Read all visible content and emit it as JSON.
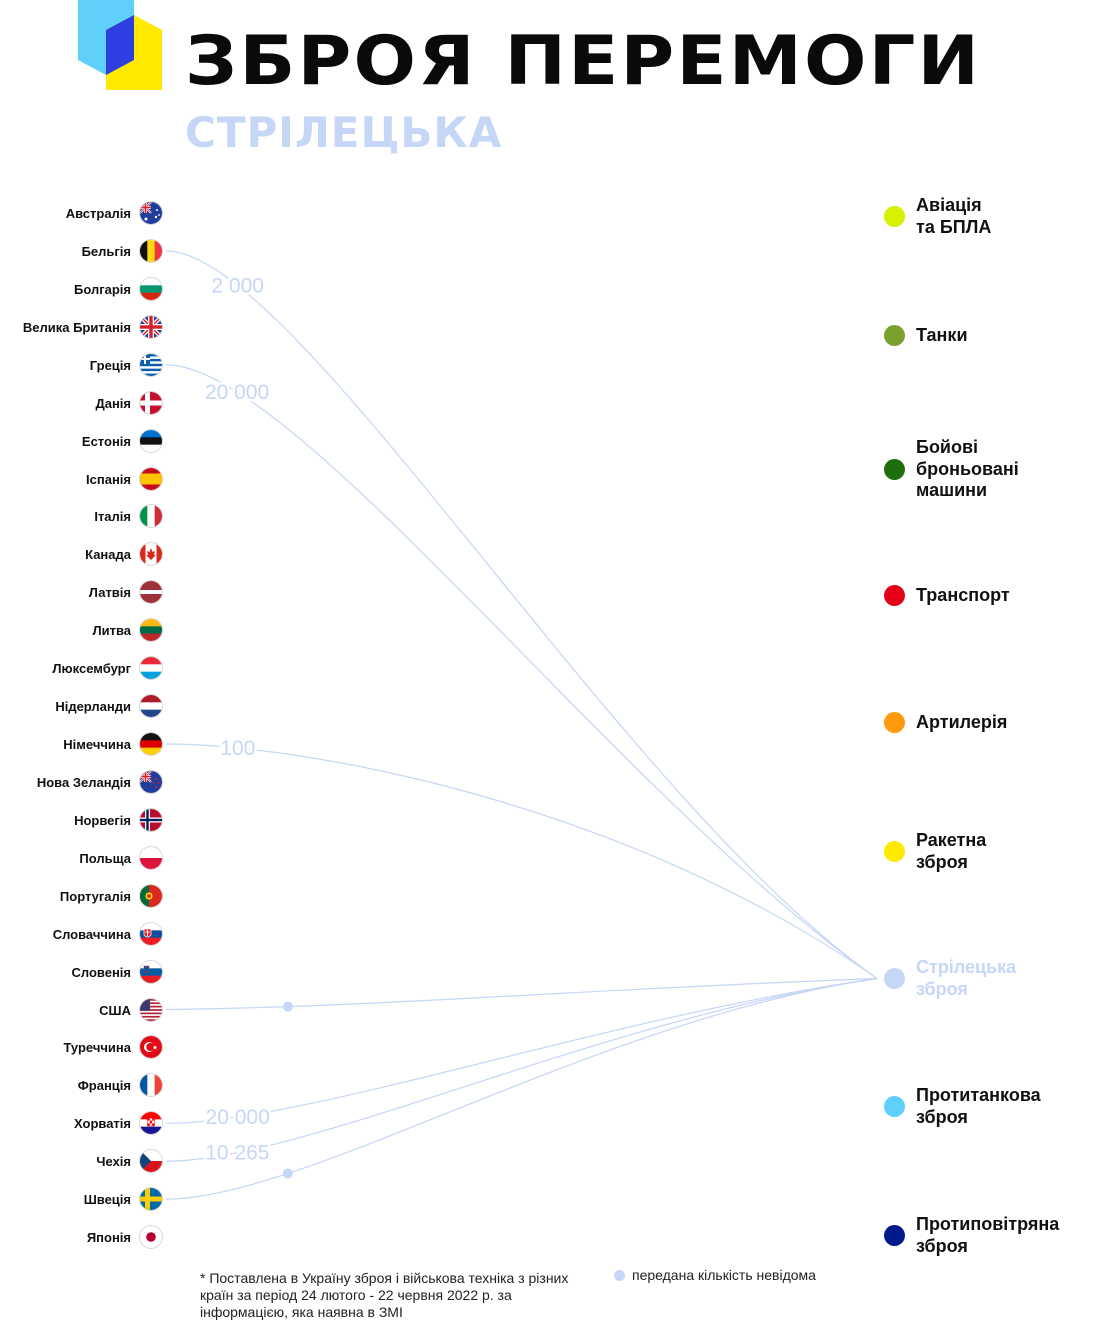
{
  "header": {
    "title": "ЗБРОЯ ПЕРЕМОГИ",
    "subtitle": "СТРІЛЕЦЬКА"
  },
  "colors": {
    "link": "#c5d6f6",
    "logo_blue": "#5fd0fb",
    "logo_dark_blue": "#2d3fe0",
    "logo_yellow": "#ffea00"
  },
  "countries": [
    {
      "name": "Австралія",
      "flag": "australia-flag-icon"
    },
    {
      "name": "Бельгія",
      "flag": "belgium-flag-icon"
    },
    {
      "name": "Болгарія",
      "flag": "bulgaria-flag-icon"
    },
    {
      "name": "Велика Британія",
      "flag": "uk-flag-icon"
    },
    {
      "name": "Греція",
      "flag": "greece-flag-icon"
    },
    {
      "name": "Данія",
      "flag": "denmark-flag-icon"
    },
    {
      "name": "Естонія",
      "flag": "estonia-flag-icon"
    },
    {
      "name": "Іспанія",
      "flag": "spain-flag-icon"
    },
    {
      "name": "Італія",
      "flag": "italy-flag-icon"
    },
    {
      "name": "Канада",
      "flag": "canada-flag-icon"
    },
    {
      "name": "Латвія",
      "flag": "latvia-flag-icon"
    },
    {
      "name": "Литва",
      "flag": "lithuania-flag-icon"
    },
    {
      "name": "Люксембург",
      "flag": "luxembourg-flag-icon"
    },
    {
      "name": "Нідерланди",
      "flag": "netherlands-flag-icon"
    },
    {
      "name": "Німеччина",
      "flag": "germany-flag-icon"
    },
    {
      "name": "Нова Зеландія",
      "flag": "new-zealand-flag-icon"
    },
    {
      "name": "Норвегія",
      "flag": "norway-flag-icon"
    },
    {
      "name": "Польща",
      "flag": "poland-flag-icon"
    },
    {
      "name": "Португалія",
      "flag": "portugal-flag-icon"
    },
    {
      "name": "Словаччина",
      "flag": "slovakia-flag-icon"
    },
    {
      "name": "Словенія",
      "flag": "slovenia-flag-icon"
    },
    {
      "name": "США",
      "flag": "usa-flag-icon"
    },
    {
      "name": "Туреччина",
      "flag": "turkey-flag-icon"
    },
    {
      "name": "Франція",
      "flag": "france-flag-icon"
    },
    {
      "name": "Хорватія",
      "flag": "croatia-flag-icon"
    },
    {
      "name": "Чехія",
      "flag": "czechia-flag-icon"
    },
    {
      "name": "Швеція",
      "flag": "sweden-flag-icon"
    },
    {
      "name": "Японія",
      "flag": "japan-flag-icon"
    }
  ],
  "categories": [
    {
      "label": "Авіація та БПЛА",
      "color": "#d6f000",
      "active": false
    },
    {
      "label": "Танки",
      "color": "#7aa02d",
      "active": false
    },
    {
      "label": "Бойові броньовані машини",
      "color": "#1f6e0c",
      "active": false
    },
    {
      "label": "Транспорт",
      "color": "#e5001a",
      "active": false
    },
    {
      "label": "Артилерія",
      "color": "#ff9a0e",
      "active": false
    },
    {
      "label": "Ракетна зброя",
      "color": "#ffea00",
      "active": false
    },
    {
      "label": "Стрілецька зброя",
      "color": "#c5d6f6",
      "active": true
    },
    {
      "label": "Протитанкова зброя",
      "color": "#5fd0fb",
      "active": false
    },
    {
      "label": "Протиповітряна зброя",
      "color": "#001a8c",
      "active": false
    }
  ],
  "links": [
    {
      "country": "Бельгія",
      "quantity": "2 000",
      "known": true
    },
    {
      "country": "Греція",
      "quantity": "20 000",
      "known": true
    },
    {
      "country": "Німеччина",
      "quantity": "100",
      "known": true
    },
    {
      "country": "США",
      "quantity": null,
      "known": false
    },
    {
      "country": "Хорватія",
      "quantity": "20 000",
      "known": true
    },
    {
      "country": "Чехія",
      "quantity": "10 265",
      "known": true
    },
    {
      "country": "Швеція",
      "quantity": null,
      "known": false
    }
  ],
  "footnote": "* Поставлена в Україну зброя і військова техніка з різних країн за період 24 лютого - 22 червня 2022 р. за інформацією, яка наявна в ЗМІ",
  "legend": {
    "unknown_label": "передана кількість невідома"
  }
}
